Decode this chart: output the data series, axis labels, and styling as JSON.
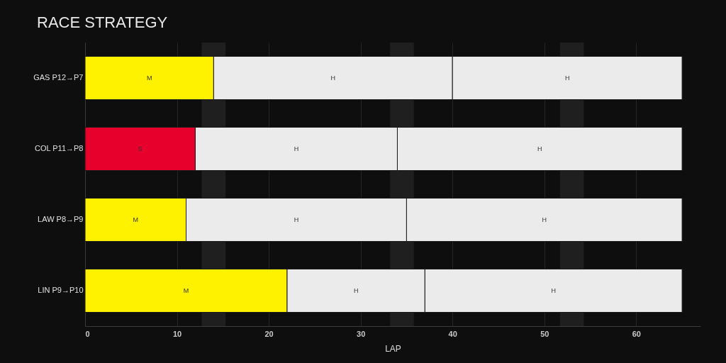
{
  "chart_data": {
    "type": "bar",
    "title": "RACE STRATEGY",
    "xlabel": "LAP",
    "orientation": "horizontal",
    "stacked": true,
    "categories": [
      "GAS P12→P7",
      "COL P11→P8",
      "LAW P8→P9",
      "LIN P9→P10"
    ],
    "series": [
      {
        "values": [
          14,
          12,
          11,
          22
        ],
        "colors": [
          "#fff200",
          "#e8002d",
          "#fff200",
          "#fff200"
        ],
        "value_labels": [
          "M",
          "S",
          "M",
          "M"
        ]
      },
      {
        "values": [
          26,
          22,
          24,
          15
        ],
        "colors": [
          "#ebebeb",
          "#ebebeb",
          "#ebebeb",
          "#ebebeb"
        ],
        "value_labels": [
          "H",
          "H",
          "H",
          "H"
        ]
      },
      {
        "values": [
          25,
          31,
          30,
          28
        ],
        "colors": [
          "#ebebeb",
          "#ebebeb",
          "#ebebeb",
          "#ebebeb"
        ],
        "value_labels": [
          "H",
          "H",
          "H",
          "H"
        ]
      }
    ],
    "xlim": [
      0,
      67
    ],
    "xticks": [
      0,
      10,
      20,
      30,
      40,
      50,
      60
    ],
    "grid": "x",
    "bands": [
      {
        "axis": "x",
        "from": 12.7,
        "to": 15.3,
        "color": "#1f1f1f"
      },
      {
        "axis": "x",
        "from": 33.2,
        "to": 35.8,
        "color": "#1f1f1f"
      },
      {
        "axis": "x",
        "from": 51.7,
        "to": 54.3,
        "color": "#1f1f1f"
      }
    ]
  }
}
